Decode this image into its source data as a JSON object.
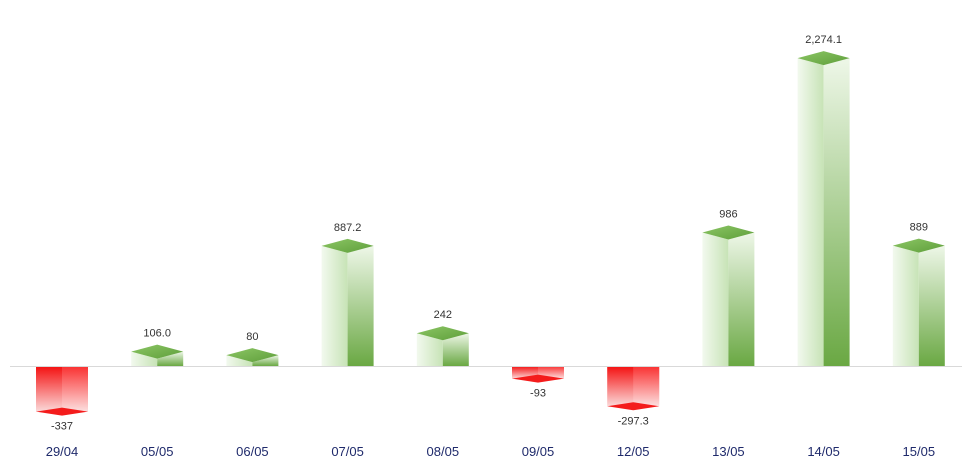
{
  "chart_data": {
    "type": "bar",
    "categories": [
      "29/04",
      "05/05",
      "06/05",
      "07/05",
      "08/05",
      "09/05",
      "12/05",
      "13/05",
      "14/05",
      "15/05"
    ],
    "values": [
      -337,
      106.0,
      80,
      887.2,
      242,
      -93,
      -297.3,
      986,
      2274.1,
      889
    ],
    "value_labels": [
      "-337",
      "106.0",
      "80",
      "887.2",
      "242",
      "-93",
      "-297.3",
      "986",
      "2,274.1",
      "889"
    ],
    "ylim": [
      -337,
      2274.1
    ],
    "grid": false,
    "legend": "none",
    "colors": {
      "positive_dark": "#6aa843",
      "positive_light": "#eef7e8",
      "positive_top": "#7fbb55",
      "negative_dark": "#f40f0f",
      "negative_light": "#fbdada",
      "axis": "#d9d9d9",
      "category_text": "#1f2a6b",
      "value_text": "#333333"
    }
  }
}
